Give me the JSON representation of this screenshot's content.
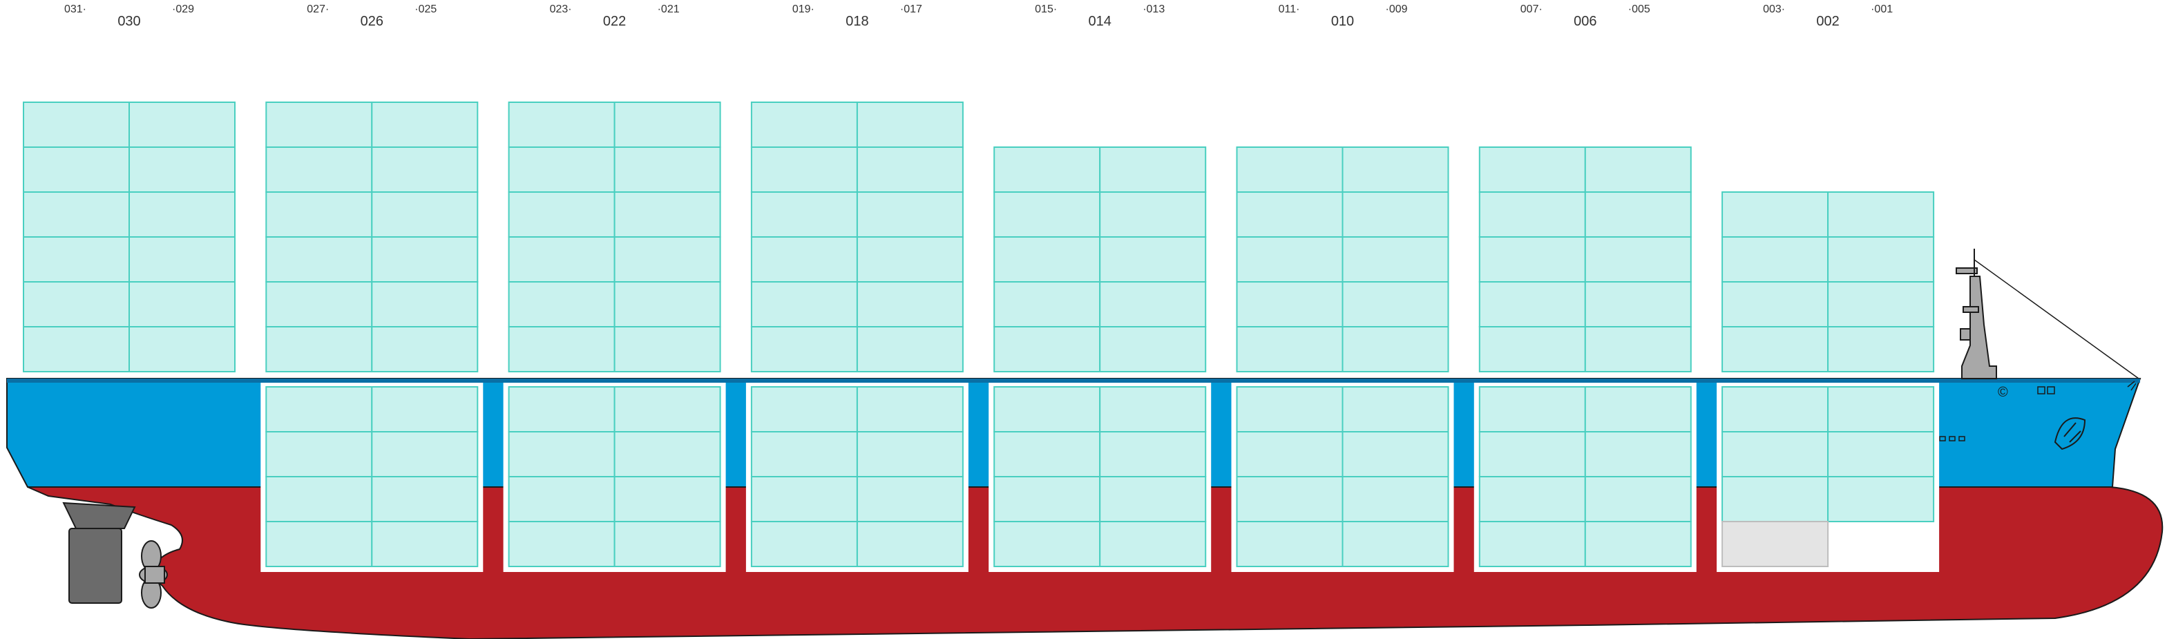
{
  "colors": {
    "container_fill": "#c9f2ee",
    "container_stroke": "#49cfc0",
    "hull_top": "#009bd9",
    "hull_bottom": "#b81f26",
    "hold_fill": "#ffffff",
    "empty_slot": "#e4e4e4",
    "machinery": "#6b6b6b",
    "superstructure": "#a8a8a8",
    "label": "#333333"
  },
  "bays": [
    {
      "label": "030",
      "aft": "031",
      "fwd": "029",
      "deck_tiers": 6,
      "hold_tiers": 0,
      "empty_hold_cells": 0
    },
    {
      "label": "026",
      "aft": "027",
      "fwd": "025",
      "deck_tiers": 6,
      "hold_tiers": 4,
      "empty_hold_cells": 0
    },
    {
      "label": "022",
      "aft": "023",
      "fwd": "021",
      "deck_tiers": 6,
      "hold_tiers": 4,
      "empty_hold_cells": 0
    },
    {
      "label": "018",
      "aft": "019",
      "fwd": "017",
      "deck_tiers": 6,
      "hold_tiers": 4,
      "empty_hold_cells": 0
    },
    {
      "label": "014",
      "aft": "015",
      "fwd": "013",
      "deck_tiers": 5,
      "hold_tiers": 4,
      "empty_hold_cells": 0
    },
    {
      "label": "010",
      "aft": "011",
      "fwd": "009",
      "deck_tiers": 5,
      "hold_tiers": 4,
      "empty_hold_cells": 0
    },
    {
      "label": "006",
      "aft": "007",
      "fwd": "005",
      "deck_tiers": 5,
      "hold_tiers": 4,
      "empty_hold_cells": 0
    },
    {
      "label": "002",
      "aft": "003",
      "fwd": "001",
      "deck_tiers": 4,
      "hold_tiers": 4,
      "empty_hold_cells": 2
    }
  ],
  "hull_marks": {
    "bow_symbol": "©"
  }
}
